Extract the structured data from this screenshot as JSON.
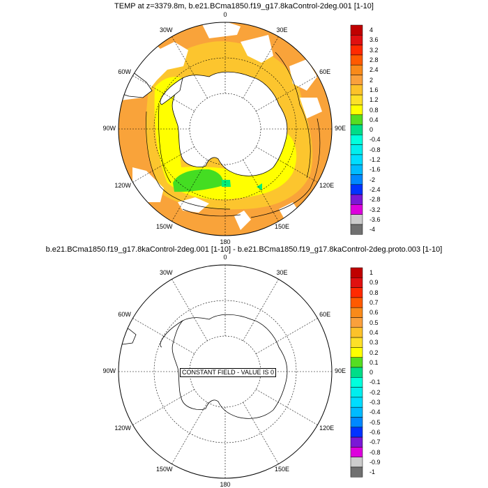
{
  "panels": [
    {
      "title": "TEMP at z=3379.8m, b.e21.BCma1850.f19_g17.8kaControl-2deg.001 [1-10]",
      "lon_labels": [
        "0",
        "30E",
        "60E",
        "90E",
        "120E",
        "150E",
        "180",
        "150W",
        "120W",
        "90W",
        "60W",
        "30W"
      ],
      "colorbar": {
        "labels": [
          "4",
          "3.6",
          "3.2",
          "2.8",
          "2.4",
          "2",
          "1.6",
          "1.2",
          "0.8",
          "0.4",
          "0",
          "-0.4",
          "-0.8",
          "-1.2",
          "-1.6",
          "-2",
          "-2.4",
          "-2.8",
          "-3.2",
          "-3.6",
          "-4"
        ],
        "colors": [
          "#c00000",
          "#e01010",
          "#ff2a00",
          "#ff5a00",
          "#f98a1a",
          "#faa03c",
          "#fcc22a",
          "#fde028",
          "#ffff00",
          "#55dd22",
          "#00dd88",
          "#00ffdd",
          "#00eeee",
          "#00ddff",
          "#00bbff",
          "#0088ff",
          "#0033ff",
          "#7a18d6",
          "#dd00dd",
          "#cccccc",
          "#707070"
        ]
      }
    },
    {
      "title": "b.e21.BCma1850.f19_g17.8kaControl-2deg.001 [1-10] - b.e21.BCma1850.f19_g17.8kaControl-2deg.proto.003 [1-10]",
      "lon_labels": [
        "0",
        "30E",
        "60E",
        "90E",
        "120E",
        "150E",
        "180",
        "150W",
        "120W",
        "90W",
        "60W",
        "30W"
      ],
      "annotation": "CONSTANT FIELD - VALUE IS 0",
      "colorbar": {
        "labels": [
          "1",
          "0.9",
          "0.8",
          "0.7",
          "0.6",
          "0.5",
          "0.4",
          "0.3",
          "0.2",
          "0.1",
          "0",
          "-0.1",
          "-0.2",
          "-0.3",
          "-0.4",
          "-0.5",
          "-0.6",
          "-0.7",
          "-0.8",
          "-0.9",
          "-1"
        ],
        "colors": [
          "#c00000",
          "#e01010",
          "#ff2a00",
          "#ff5a00",
          "#f98a1a",
          "#faa03c",
          "#fcc22a",
          "#fde028",
          "#ffff00",
          "#55dd22",
          "#00dd88",
          "#00ffdd",
          "#00eeee",
          "#00ddff",
          "#00bbff",
          "#0088ff",
          "#0033ff",
          "#7a18d6",
          "#dd00dd",
          "#cccccc",
          "#707070"
        ]
      }
    }
  ],
  "palette": {
    "orange": "#f9a33a",
    "light_orange": "#fcc52e",
    "yellow": "#ffff00",
    "green": "#44dd22",
    "mint": "#00ee77",
    "land": "#ffffff"
  }
}
